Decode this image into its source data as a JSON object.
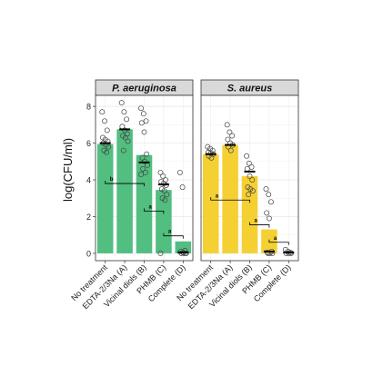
{
  "chart_data": [
    {
      "type": "bar",
      "facet_label": "P. aeruginosa",
      "ylabel": "log(CFU/ml)",
      "ylim": [
        -0.4,
        8.6
      ],
      "yticks": [
        0,
        2,
        4,
        6,
        8
      ],
      "grid": true,
      "bar_color": "#52be80",
      "categories": [
        "No treatment",
        "EDTA-2/3Na (A)",
        "Vicinal diols (B)",
        "PHMB (C)",
        "Complete (D)"
      ],
      "values": [
        5.95,
        6.75,
        5.35,
        3.45,
        0.65
      ],
      "points": [
        [
          7.7,
          7.2,
          6.7,
          6.3,
          6.2,
          6.1,
          6.0,
          5.9,
          5.8,
          5.6,
          5.5
        ],
        [
          8.2,
          7.7,
          7.3,
          6.9,
          6.7,
          6.5,
          6.4,
          6.3,
          6.1,
          5.6
        ],
        [
          7.9,
          7.6,
          7.2,
          7.1,
          6.6,
          5.4,
          5.2,
          5.0,
          4.8,
          4.6,
          4.4,
          4.3
        ],
        [
          4.4,
          4.2,
          4.0,
          3.9,
          3.8,
          3.7,
          3.5,
          3.4,
          3.2,
          3.0,
          2.9,
          0.0
        ],
        [
          4.4,
          3.6,
          0.15,
          0.1,
          0.05,
          0.0,
          0.0,
          0.0,
          0.0
        ]
      ],
      "means": [
        6.0,
        6.75,
        4.95,
        3.75,
        0.05
      ],
      "brackets": [
        {
          "from": 0,
          "to": 2,
          "y": 3.8,
          "label": "b"
        },
        {
          "from": 2,
          "to": 3,
          "y": 2.3,
          "label": "a"
        },
        {
          "from": 3,
          "to": 4,
          "y": 0.95,
          "label": "a"
        }
      ]
    },
    {
      "type": "bar",
      "facet_label": "S. aureus",
      "ylim": [
        -0.4,
        8.6
      ],
      "grid": true,
      "bar_color": "#f5d033",
      "categories": [
        "No treatment",
        "EDTA-2/3Na (A)",
        "Vicinal diols (B)",
        "PHMB (C)",
        "Complete (D)"
      ],
      "values": [
        5.4,
        5.9,
        4.2,
        1.3,
        0.0
      ],
      "points": [
        [
          5.8,
          5.7,
          5.6,
          5.5,
          5.45,
          5.4,
          5.3,
          5.2
        ],
        [
          7.0,
          6.6,
          6.4,
          6.2,
          6.0,
          5.9,
          5.8,
          5.6
        ],
        [
          5.3,
          4.9,
          4.7,
          4.6,
          4.2,
          4.0,
          3.6,
          3.5,
          3.4,
          3.2
        ],
        [
          3.5,
          3.2,
          2.8,
          2.2,
          1.9,
          0.1,
          0.05,
          0.0,
          0.0,
          0.0
        ],
        [
          0.2,
          0.1,
          0.05,
          0.0,
          0.0,
          0.0
        ]
      ],
      "means": [
        5.4,
        5.9,
        4.45,
        0.1,
        0.05
      ],
      "brackets": [
        {
          "from": 0,
          "to": 2,
          "y": 2.9,
          "label": "a"
        },
        {
          "from": 2,
          "to": 3,
          "y": 1.55,
          "label": "a"
        },
        {
          "from": 3,
          "to": 4,
          "y": 0.6,
          "label": "a"
        }
      ]
    }
  ]
}
